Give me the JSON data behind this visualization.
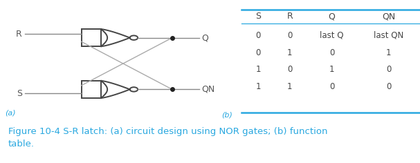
{
  "background_color": "#ffffff",
  "fig_width": 6.07,
  "fig_height": 2.36,
  "caption": "Figure 10-4 S-R latch: (a) circuit design using NOR gates; (b) function\ntable.",
  "caption_color": "#29a8e0",
  "label_a": "(a)",
  "label_b": "(b)",
  "label_color": "#29a8e0",
  "table_header": [
    "S",
    "R",
    "Q",
    "QN"
  ],
  "table_rows": [
    [
      "0",
      "0",
      "last Q",
      "last QN"
    ],
    [
      "0",
      "1",
      "0",
      "1"
    ],
    [
      "1",
      "0",
      "1",
      "0"
    ],
    [
      "1",
      "1",
      "0",
      "0"
    ]
  ],
  "table_line_color": "#29a8e0",
  "gate_color": "#444444",
  "wire_color": "#888888",
  "cross_wire_color": "#aaaaaa",
  "text_color": "#555555",
  "dot_color": "#222222",
  "label_fontsize": 8,
  "text_fontsize": 9,
  "caption_fontsize": 9.5
}
